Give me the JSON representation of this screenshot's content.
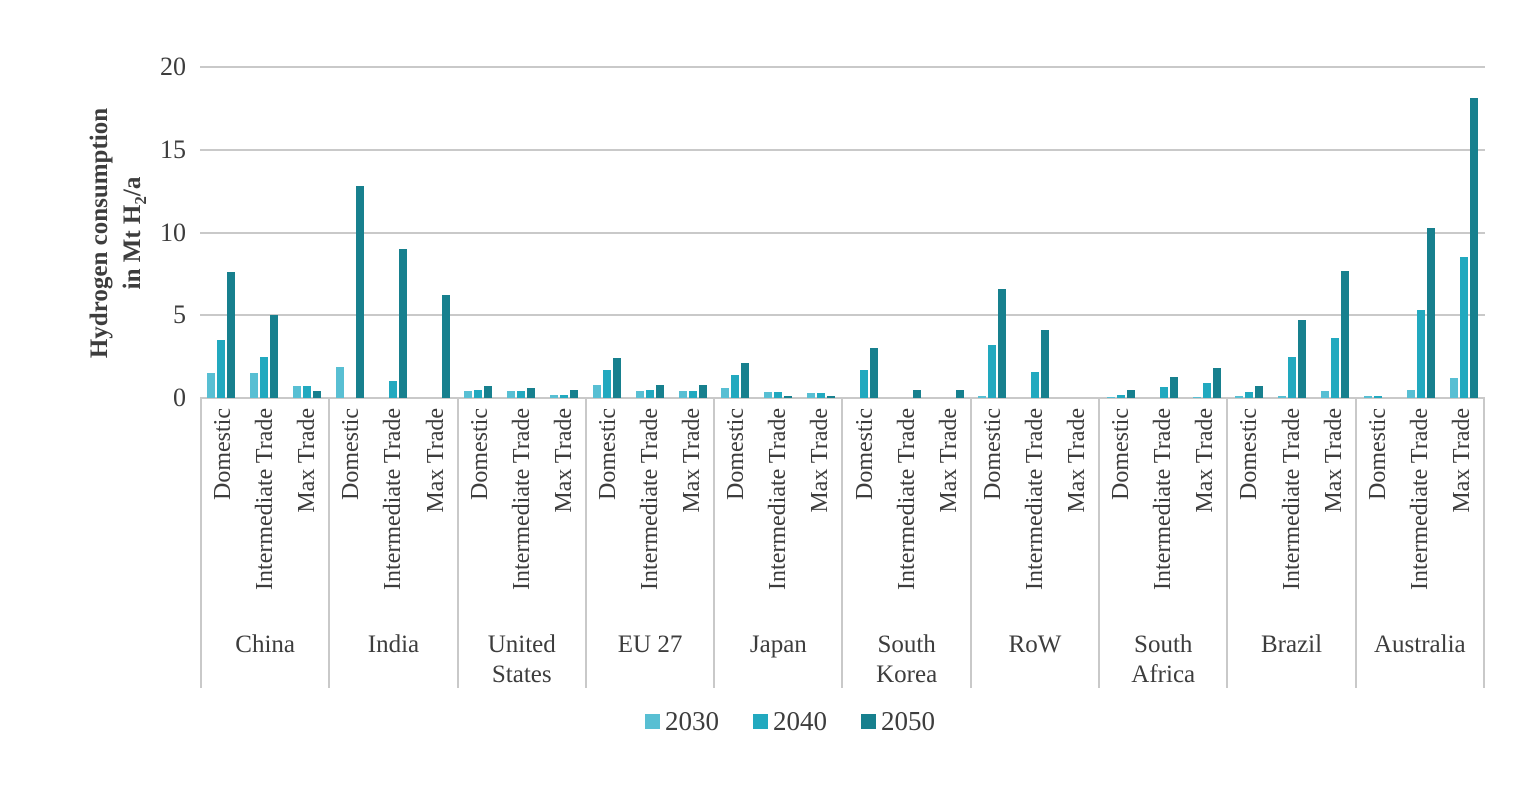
{
  "chart_data": {
    "type": "bar",
    "title": "",
    "ylabel_line1": "Hydrogen consumption",
    "ylabel_line2_pre": "in Mt H",
    "ylabel_sub": "2",
    "ylabel_line2_post": "/a",
    "ylim": [
      0,
      20
    ],
    "yticks": [
      0,
      5,
      10,
      15,
      20
    ],
    "grid": true,
    "legend_position": "bottom",
    "series": [
      {
        "name": "2030",
        "color": "#58BFD3"
      },
      {
        "name": "2040",
        "color": "#22A9BF"
      },
      {
        "name": "2050",
        "color": "#17808E"
      }
    ],
    "scenarios": [
      "Domestic",
      "Intermediate Trade",
      "Max Trade"
    ],
    "groups": [
      {
        "country": "China",
        "values": [
          [
            1.5,
            3.5,
            7.6
          ],
          [
            1.5,
            2.5,
            5.0
          ],
          [
            0.7,
            0.7,
            0.4
          ]
        ]
      },
      {
        "country": "India",
        "values": [
          [
            1.9,
            0,
            12.8
          ],
          [
            0,
            1.0,
            9.0
          ],
          [
            0,
            0,
            6.2
          ]
        ]
      },
      {
        "country": "United States",
        "values": [
          [
            0.4,
            0.5,
            0.7
          ],
          [
            0.4,
            0.4,
            0.6
          ],
          [
            0.2,
            0.2,
            0.5
          ]
        ]
      },
      {
        "country": "EU 27",
        "values": [
          [
            0.8,
            1.7,
            2.4
          ],
          [
            0.4,
            0.5,
            0.8
          ],
          [
            0.4,
            0.4,
            0.8
          ]
        ]
      },
      {
        "country": "Japan",
        "values": [
          [
            0.6,
            1.4,
            2.1
          ],
          [
            0.35,
            0.35,
            0.1
          ],
          [
            0.3,
            0.3,
            0.1
          ]
        ]
      },
      {
        "country": "South Korea",
        "values": [
          [
            0,
            1.7,
            3.0
          ],
          [
            0,
            0,
            0.5
          ],
          [
            0,
            0,
            0.5
          ]
        ]
      },
      {
        "country": "RoW",
        "values": [
          [
            0.1,
            3.2,
            6.6
          ],
          [
            0,
            1.6,
            4.1
          ],
          [
            0,
            0,
            0
          ]
        ]
      },
      {
        "country": "South Africa",
        "values": [
          [
            0.05,
            0.2,
            0.5
          ],
          [
            0,
            0.65,
            1.3
          ],
          [
            0.05,
            0.9,
            1.8
          ]
        ]
      },
      {
        "country": "Brazil",
        "values": [
          [
            0.1,
            0.35,
            0.7
          ],
          [
            0.1,
            2.5,
            4.7
          ],
          [
            0.4,
            3.6,
            7.7
          ]
        ]
      },
      {
        "country": "Australia",
        "values": [
          [
            0.1,
            0.15,
            0
          ],
          [
            0.5,
            5.3,
            10.3
          ],
          [
            1.2,
            8.5,
            18.1
          ]
        ]
      }
    ],
    "grid_color": "#c9c9c9",
    "text_color": "#3d3d3d"
  }
}
